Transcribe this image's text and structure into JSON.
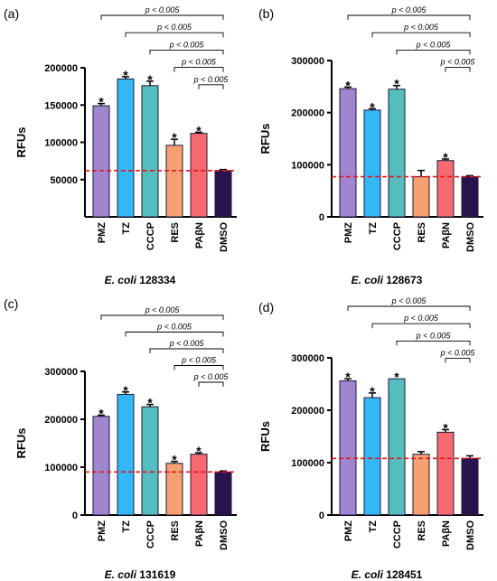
{
  "colors": {
    "PMZ": "#9f86cf",
    "TZ": "#33b8f7",
    "CCCP": "#55bdbd",
    "RES": "#f7a072",
    "PAβN": "#f76a72",
    "DMSO": "#2a1450",
    "baseline": "#e8151b",
    "axis": "#000000"
  },
  "chart_data": [
    {
      "type": "bar",
      "panel_label": "(a)",
      "caption_italic": "E. coli",
      "caption_strain": "128334",
      "ylabel": "RFUs",
      "categories": [
        "PMZ",
        "TZ",
        "CCCP",
        "RES",
        "PAβN",
        "DMSO"
      ],
      "values": [
        149000,
        185000,
        176000,
        96000,
        112000,
        62000
      ],
      "errors": [
        3000,
        3000,
        6000,
        8000,
        1500,
        1500
      ],
      "significant": [
        true,
        true,
        true,
        true,
        true,
        false
      ],
      "ylim": [
        0,
        200000
      ],
      "yticks": [
        50000,
        100000,
        150000,
        200000
      ],
      "ytick_labels": [
        "50000",
        "100000",
        "150000",
        "200000"
      ],
      "baseline_value": 62000,
      "comparisons": [
        {
          "from": 0,
          "to": 5,
          "label": "p < 0.005"
        },
        {
          "from": 1,
          "to": 5,
          "label": "p < 0.005"
        },
        {
          "from": 2,
          "to": 5,
          "label": "p < 0.005"
        },
        {
          "from": 3,
          "to": 5,
          "label": "p < 0.005"
        },
        {
          "from": 4,
          "to": 5,
          "label": "p < 0.005"
        }
      ]
    },
    {
      "type": "bar",
      "panel_label": "(b)",
      "caption_italic": "E. coli",
      "caption_strain": "128673",
      "ylabel": "RFUs",
      "categories": [
        "PMZ",
        "TZ",
        "CCCP",
        "RES",
        "PAβN",
        "DMSO"
      ],
      "values": [
        246000,
        205000,
        245000,
        77000,
        108000,
        77000
      ],
      "errors": [
        3000,
        2500,
        7000,
        12000,
        3000,
        2000
      ],
      "significant": [
        true,
        true,
        true,
        false,
        true,
        false
      ],
      "ylim": [
        0,
        300000
      ],
      "yticks": [
        0,
        100000,
        200000,
        300000
      ],
      "ytick_labels": [
        "0",
        "100000",
        "200000",
        "300000"
      ],
      "baseline_value": 77000,
      "comparisons": [
        {
          "from": 0,
          "to": 5,
          "label": "p < 0.005"
        },
        {
          "from": 1,
          "to": 5,
          "label": "p < 0.005"
        },
        {
          "from": 2,
          "to": 5,
          "label": "p < 0.005"
        },
        {
          "from": 4,
          "to": 5,
          "label": "p < 0.005"
        }
      ]
    },
    {
      "type": "bar",
      "panel_label": "(c)",
      "caption_italic": "E. coli",
      "caption_strain": "131619",
      "ylabel": "RFUs",
      "categories": [
        "PMZ",
        "TZ",
        "CCCP",
        "RES",
        "PAβN",
        "DMSO"
      ],
      "values": [
        206000,
        252000,
        226000,
        108000,
        127000,
        90000
      ],
      "errors": [
        2500,
        5000,
        5000,
        4000,
        3000,
        2000
      ],
      "significant": [
        true,
        true,
        true,
        true,
        true,
        false
      ],
      "ylim": [
        0,
        300000
      ],
      "yticks": [
        0,
        100000,
        200000,
        300000
      ],
      "ytick_labels": [
        "0",
        "100000",
        "200000",
        "300000"
      ],
      "baseline_value": 90000,
      "comparisons": [
        {
          "from": 0,
          "to": 5,
          "label": "p < 0.005"
        },
        {
          "from": 1,
          "to": 5,
          "label": "p < 0.005"
        },
        {
          "from": 2,
          "to": 5,
          "label": "p < 0.005"
        },
        {
          "from": 3,
          "to": 5,
          "label": "p < 0.005"
        },
        {
          "from": 4,
          "to": 5,
          "label": "p < 0.005"
        }
      ]
    },
    {
      "type": "bar",
      "panel_label": "(d)",
      "caption_italic": "E. coli",
      "caption_strain": "128451",
      "ylabel": "RFUs",
      "categories": [
        "PMZ",
        "TZ",
        "CCCP",
        "RES",
        "PAβN",
        "DMSO"
      ],
      "values": [
        256000,
        224000,
        260000,
        116000,
        158000,
        108000
      ],
      "errors": [
        4000,
        9000,
        0,
        5000,
        5000,
        5000
      ],
      "significant": [
        true,
        true,
        true,
        false,
        true,
        false
      ],
      "ylim": [
        0,
        300000
      ],
      "yticks": [
        0,
        100000,
        200000,
        300000
      ],
      "ytick_labels": [
        "0",
        "100000",
        "200000",
        "300000"
      ],
      "baseline_value": 108000,
      "comparisons": [
        {
          "from": 0,
          "to": 5,
          "label": "p < 0.005"
        },
        {
          "from": 1,
          "to": 5,
          "label": "p < 0.005"
        },
        {
          "from": 2,
          "to": 5,
          "label": "p < 0.005"
        },
        {
          "from": 4,
          "to": 5,
          "label": "p < 0.005"
        }
      ]
    }
  ]
}
